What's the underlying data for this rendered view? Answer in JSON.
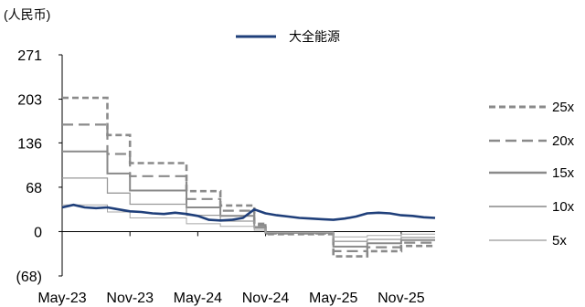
{
  "chart_data": {
    "type": "line",
    "unit_label": "(人民币)",
    "ylim": [
      -68,
      271
    ],
    "y_ticks": [
      "271",
      "203",
      "136",
      "68",
      "0",
      "(68)"
    ],
    "y_tick_values": [
      271,
      203,
      136,
      68,
      0,
      -68
    ],
    "x_ticks": [
      "May-23",
      "Nov-23",
      "May-24",
      "Nov-24",
      "May-25",
      "Nov-25"
    ],
    "x_range": [
      "2023-05",
      "2026-02"
    ],
    "grid": false,
    "legend": {
      "top": "大全能源",
      "right": [
        "25x",
        "20x",
        "15x",
        "10x",
        "5x"
      ]
    },
    "colors": {
      "price": "#1f3f7a",
      "band_25x": "#8a8a8a",
      "band_20x": "#8a8a8a",
      "band_15x": "#8a8a8a",
      "band_10x": "#9a9a9a",
      "band_5x": "#a8a8a8"
    },
    "price_series": {
      "name": "大全能源",
      "x": [
        "2023-05",
        "2023-06",
        "2023-07",
        "2023-08",
        "2023-09",
        "2023-10",
        "2023-11",
        "2023-12",
        "2024-01",
        "2024-02",
        "2024-03",
        "2024-04",
        "2024-05",
        "2024-06",
        "2024-07",
        "2024-08",
        "2024-09",
        "2024-10",
        "2024-11",
        "2024-12",
        "2025-01",
        "2025-02",
        "2025-03",
        "2025-04",
        "2025-05",
        "2025-06",
        "2025-07",
        "2025-08",
        "2025-09",
        "2025-10",
        "2025-11",
        "2025-12",
        "2026-01",
        "2026-02"
      ],
      "values": [
        37,
        41,
        37,
        36,
        37,
        34,
        31,
        30,
        28,
        27,
        29,
        27,
        24,
        18,
        17,
        18,
        21,
        34,
        28,
        25,
        23,
        21,
        20,
        19,
        18,
        20,
        23,
        28,
        29,
        28,
        25,
        24,
        22,
        21
      ]
    },
    "bands": [
      {
        "name": "25x",
        "steps": [
          {
            "from": "2023-05",
            "to": "2023-09",
            "value": 205
          },
          {
            "from": "2023-09",
            "to": "2023-11",
            "value": 148
          },
          {
            "from": "2023-11",
            "to": "2024-04",
            "value": 105
          },
          {
            "from": "2024-04",
            "to": "2024-07",
            "value": 62
          },
          {
            "from": "2024-07",
            "to": "2024-10",
            "value": 40
          },
          {
            "from": "2024-10",
            "to": "2024-11",
            "value": 12
          },
          {
            "from": "2024-11",
            "to": "2025-05",
            "value": -4
          },
          {
            "from": "2025-05",
            "to": "2025-08",
            "value": -38
          },
          {
            "from": "2025-08",
            "to": "2025-11",
            "value": -30
          },
          {
            "from": "2025-11",
            "to": "2026-02",
            "value": -22
          }
        ]
      },
      {
        "name": "20x",
        "steps": [
          {
            "from": "2023-05",
            "to": "2023-09",
            "value": 164
          },
          {
            "from": "2023-09",
            "to": "2023-11",
            "value": 119
          },
          {
            "from": "2023-11",
            "to": "2024-04",
            "value": 85
          },
          {
            "from": "2024-04",
            "to": "2024-07",
            "value": 50
          },
          {
            "from": "2024-07",
            "to": "2024-10",
            "value": 32
          },
          {
            "from": "2024-10",
            "to": "2024-11",
            "value": 10
          },
          {
            "from": "2024-11",
            "to": "2025-05",
            "value": -3
          },
          {
            "from": "2025-05",
            "to": "2025-08",
            "value": -30
          },
          {
            "from": "2025-08",
            "to": "2025-11",
            "value": -24
          },
          {
            "from": "2025-11",
            "to": "2026-02",
            "value": -17
          }
        ]
      },
      {
        "name": "15x",
        "steps": [
          {
            "from": "2023-05",
            "to": "2023-09",
            "value": 123
          },
          {
            "from": "2023-09",
            "to": "2023-11",
            "value": 89
          },
          {
            "from": "2023-11",
            "to": "2024-04",
            "value": 63
          },
          {
            "from": "2024-04",
            "to": "2024-07",
            "value": 37
          },
          {
            "from": "2024-07",
            "to": "2024-10",
            "value": 24
          },
          {
            "from": "2024-10",
            "to": "2024-11",
            "value": 7
          },
          {
            "from": "2024-11",
            "to": "2025-05",
            "value": -2
          },
          {
            "from": "2025-05",
            "to": "2025-08",
            "value": -23
          },
          {
            "from": "2025-08",
            "to": "2025-11",
            "value": -18
          },
          {
            "from": "2025-11",
            "to": "2026-02",
            "value": -13
          }
        ]
      },
      {
        "name": "10x",
        "steps": [
          {
            "from": "2023-05",
            "to": "2023-09",
            "value": 82
          },
          {
            "from": "2023-09",
            "to": "2023-11",
            "value": 59
          },
          {
            "from": "2023-11",
            "to": "2024-04",
            "value": 42
          },
          {
            "from": "2024-04",
            "to": "2024-07",
            "value": 25
          },
          {
            "from": "2024-07",
            "to": "2024-10",
            "value": 16
          },
          {
            "from": "2024-10",
            "to": "2024-11",
            "value": 5
          },
          {
            "from": "2024-11",
            "to": "2025-05",
            "value": -1
          },
          {
            "from": "2025-05",
            "to": "2025-08",
            "value": -15
          },
          {
            "from": "2025-08",
            "to": "2025-11",
            "value": -12
          },
          {
            "from": "2025-11",
            "to": "2026-02",
            "value": -9
          }
        ]
      },
      {
        "name": "5x",
        "steps": [
          {
            "from": "2023-05",
            "to": "2023-09",
            "value": 41
          },
          {
            "from": "2023-09",
            "to": "2023-11",
            "value": 30
          },
          {
            "from": "2023-11",
            "to": "2024-04",
            "value": 21
          },
          {
            "from": "2024-04",
            "to": "2024-07",
            "value": 12
          },
          {
            "from": "2024-07",
            "to": "2024-10",
            "value": 8
          },
          {
            "from": "2024-10",
            "to": "2024-11",
            "value": 2
          },
          {
            "from": "2024-11",
            "to": "2025-05",
            "value": -1
          },
          {
            "from": "2025-05",
            "to": "2025-08",
            "value": -8
          },
          {
            "from": "2025-08",
            "to": "2025-11",
            "value": -6
          },
          {
            "from": "2025-11",
            "to": "2026-02",
            "value": -4
          }
        ]
      }
    ]
  }
}
